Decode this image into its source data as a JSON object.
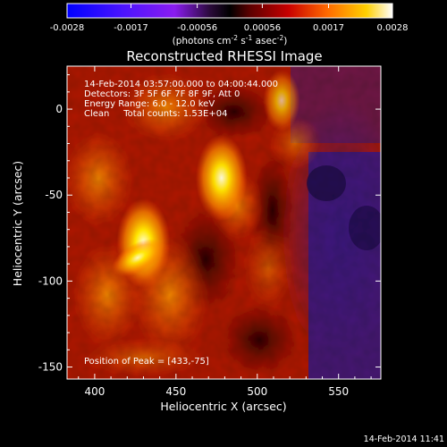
{
  "colorbar": {
    "min": -0.0028,
    "max": 0.0028,
    "ticks": [
      "-0.0028",
      "-0.0017",
      "-0.00056",
      "0.00056",
      "0.0017",
      "0.0028"
    ],
    "unit_label": "(photons cm",
    "unit_sup1": "-2",
    "unit_mid": " s",
    "unit_sup2": "-1",
    "unit_mid2": " asec",
    "unit_sup3": "-2",
    "unit_close": ")"
  },
  "chart_data": {
    "type": "heatmap",
    "title": "Reconstructed RHESSI Image",
    "xlabel": "Heliocentric X (arcsec)",
    "ylabel": "Heliocentric Y (arcsec)",
    "xlim": [
      383,
      576
    ],
    "ylim": [
      -157,
      25
    ],
    "xticks": [
      400,
      450,
      500,
      550
    ],
    "yticks": [
      -150,
      -100,
      -50,
      0
    ],
    "info_lines": [
      "14-Feb-2014 03:57:00.000 to 04:00:44.000",
      "Detectors: 3F 5F 6F 7F 8F 9F, Att 0",
      "Energy Range: 6.0 - 12.0 keV",
      "Clean     Total counts: 1.53E+04"
    ],
    "peak_label": "Position of Peak = [433,-75]",
    "peak": [
      433,
      -75
    ],
    "sources": [
      {
        "x": 430,
        "y": -78,
        "value": 0.0028
      },
      {
        "x": 478,
        "y": -40,
        "value": 0.0026
      },
      {
        "x": 515,
        "y": 5,
        "value": 0.0012
      }
    ]
  },
  "footer": {
    "timestamp": "14-Feb-2014 11:41"
  },
  "colors": {
    "background": "#000000",
    "text": "#ffffff"
  }
}
